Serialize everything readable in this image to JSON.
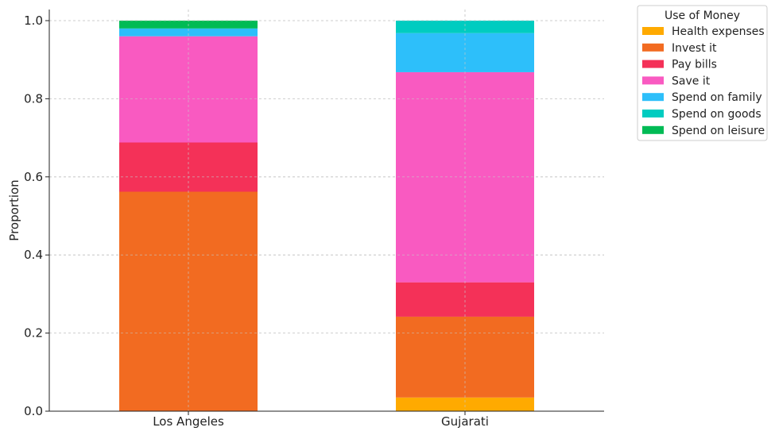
{
  "chart_data": {
    "type": "bar",
    "stacked": true,
    "categories": [
      "Los Angeles",
      "Gujarati"
    ],
    "ylabel": "Proportion",
    "xlabel": "",
    "ylim": [
      0,
      1.0
    ],
    "yticks": [
      "0.0",
      "0.2",
      "0.4",
      "0.6",
      "0.8",
      "1.0"
    ],
    "grid": true,
    "legend": {
      "title": "Use of Money",
      "placement": "top-right outside"
    },
    "series": [
      {
        "name": "Health expenses",
        "color": "#FFAA00",
        "values": [
          0.0,
          0.035
        ]
      },
      {
        "name": "Invest it",
        "color": "#F26B21",
        "values": [
          0.562,
          0.207
        ]
      },
      {
        "name": "Pay bills",
        "color": "#F43158",
        "values": [
          0.126,
          0.088
        ]
      },
      {
        "name": "Save it",
        "color": "#F95AC1",
        "values": [
          0.272,
          0.538
        ]
      },
      {
        "name": "Spend on family",
        "color": "#2DBFFA",
        "values": [
          0.02,
          0.1
        ]
      },
      {
        "name": "Spend on goods",
        "color": "#00CCC0",
        "values": [
          0.0,
          0.032
        ]
      },
      {
        "name": "Spend on leisure",
        "color": "#00BB55",
        "values": [
          0.02,
          0.0
        ]
      }
    ]
  }
}
